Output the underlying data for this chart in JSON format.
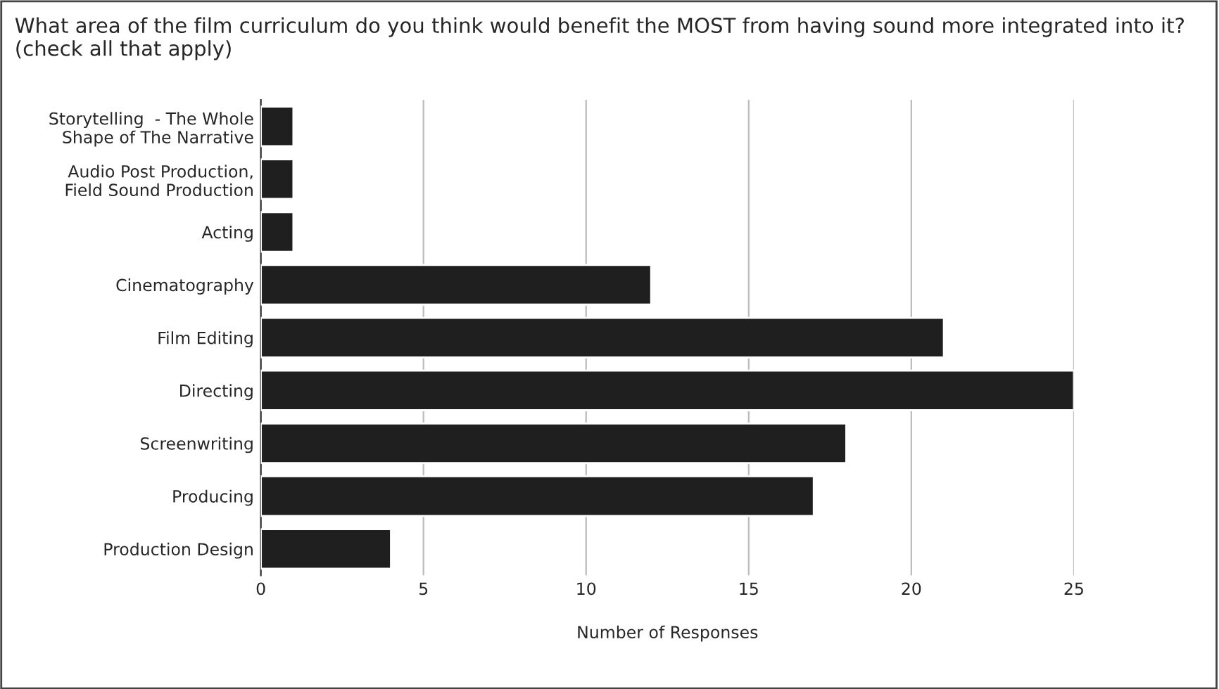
{
  "chart_data": {
    "type": "bar",
    "orientation": "horizontal",
    "title": "What area of the film curriculum do you think would benefit the MOST from having sound more integrated into it?  (check all that apply)",
    "xlabel": "Number of Responses",
    "categories": [
      "Storytelling  - The Whole\nShape of The Narrative",
      "Audio Post Production,\nField Sound Production",
      "Acting",
      "Cinematography",
      "Film Editing",
      "Directing",
      "Screenwriting",
      "Producing",
      "Production Design"
    ],
    "series": [
      {
        "color": "#1f1f1f",
        "values": [
          1,
          1,
          1,
          12,
          21,
          25,
          18,
          17,
          4
        ]
      }
    ],
    "xlim": [
      0,
      25
    ],
    "xticks": [
      0,
      5,
      10,
      15,
      20,
      25
    ],
    "grid": "x"
  }
}
